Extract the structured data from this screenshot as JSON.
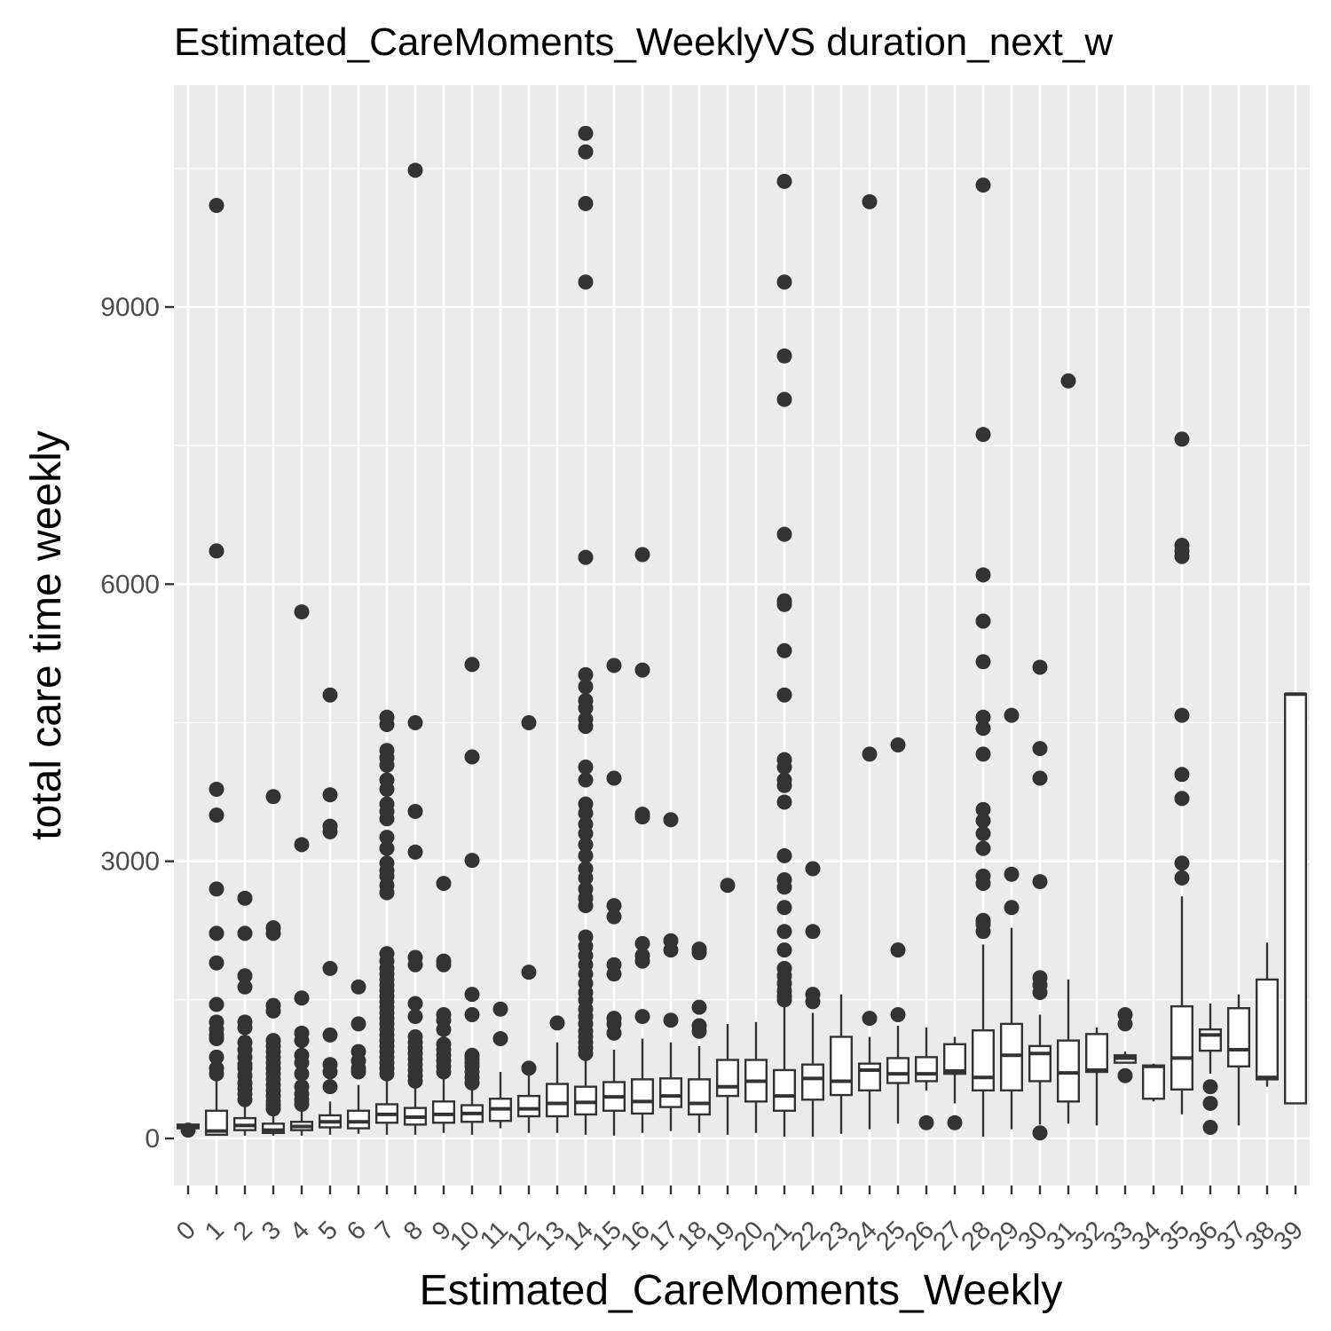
{
  "chart_data": {
    "type": "box",
    "title": "Estimated_CareMoments_WeeklyVS duration_next_w",
    "xlabel": "Estimated_CareMoments_Weekly",
    "ylabel": "total care time weekly",
    "ylim": [
      -550,
      11400
    ],
    "yticks": [
      0,
      3000,
      6000,
      9000
    ],
    "grid": true,
    "legend": "none",
    "colors": {
      "panel": "#ebebeb",
      "grid": "#ffffff",
      "box_stroke": "#333333",
      "box_fill": "#ffffff",
      "outlier": "#333333"
    },
    "categories": [
      "0",
      "1",
      "2",
      "3",
      "4",
      "5",
      "6",
      "7",
      "8",
      "9",
      "10",
      "11",
      "12",
      "13",
      "14",
      "15",
      "16",
      "17",
      "18",
      "19",
      "20",
      "21",
      "22",
      "23",
      "24",
      "25",
      "26",
      "27",
      "28",
      "29",
      "30",
      "31",
      "32",
      "33",
      "34",
      "35",
      "36",
      "37",
      "38",
      "39"
    ],
    "boxes": [
      {
        "x": "0",
        "min": 90,
        "q1": 110,
        "median": 130,
        "q3": 150,
        "max": 160,
        "outliers": [
          90
        ]
      },
      {
        "x": "1",
        "min": 30,
        "q1": 40,
        "median": 80,
        "q3": 300,
        "max": 620,
        "outliers": [
          10100,
          6360,
          3780,
          3500,
          2700,
          2220,
          1900,
          1450,
          1260,
          1180,
          1120,
          1080,
          880,
          760,
          700
        ]
      },
      {
        "x": "2",
        "min": 30,
        "q1": 90,
        "median": 140,
        "q3": 220,
        "max": 380,
        "outliers": [
          2600,
          2220,
          1760,
          1640,
          1260,
          1200,
          1040,
          960,
          880,
          800,
          760,
          680,
          600,
          540,
          480,
          420
        ]
      },
      {
        "x": "3",
        "min": 30,
        "q1": 60,
        "median": 90,
        "q3": 160,
        "max": 300,
        "outliers": [
          3700,
          2280,
          2220,
          1440,
          1380,
          1060,
          1000,
          940,
          880,
          820,
          760,
          700,
          640,
          580,
          520,
          460,
          400,
          360,
          320
        ]
      },
      {
        "x": "4",
        "min": 30,
        "q1": 90,
        "median": 130,
        "q3": 180,
        "max": 300,
        "outliers": [
          5700,
          3180,
          1520,
          1140,
          1060,
          900,
          820,
          700,
          560,
          480,
          420,
          370
        ]
      },
      {
        "x": "5",
        "min": 40,
        "q1": 120,
        "median": 180,
        "q3": 250,
        "max": 400,
        "outliers": [
          4800,
          3720,
          3380,
          3320,
          1840,
          1120,
          800,
          720,
          560
        ]
      },
      {
        "x": "6",
        "min": 50,
        "q1": 110,
        "median": 180,
        "q3": 300,
        "max": 580,
        "outliers": [
          1640,
          1240,
          940,
          840,
          760,
          720
        ]
      },
      {
        "x": "7",
        "min": 40,
        "q1": 170,
        "median": 260,
        "q3": 370,
        "max": 660,
        "outliers": [
          4560,
          4480,
          4200,
          4120,
          4040,
          3880,
          3780,
          3620,
          3540,
          3460,
          3260,
          3140,
          2980,
          2900,
          2840,
          2740,
          2660,
          2000,
          1920,
          1840,
          1780,
          1720,
          1660,
          1600,
          1540,
          1480,
          1420,
          1360,
          1300,
          1240,
          1180,
          1120,
          1060,
          1000,
          940,
          880,
          820,
          760,
          700
        ]
      },
      {
        "x": "8",
        "min": 40,
        "q1": 150,
        "median": 230,
        "q3": 330,
        "max": 580,
        "outliers": [
          10480,
          4500,
          3540,
          3100,
          1960,
          1880,
          1460,
          1320,
          1100,
          1040,
          980,
          920,
          860,
          800,
          740,
          680,
          620
        ]
      },
      {
        "x": "9",
        "min": 60,
        "q1": 170,
        "median": 260,
        "q3": 400,
        "max": 660,
        "outliers": [
          2760,
          1920,
          1880,
          1340,
          1280,
          1180,
          1020,
          960,
          900,
          840,
          780,
          720
        ]
      },
      {
        "x": "10",
        "min": 40,
        "q1": 180,
        "median": 270,
        "q3": 360,
        "max": 560,
        "outliers": [
          5130,
          4130,
          3010,
          1560,
          1340,
          900,
          860,
          820,
          780,
          720,
          660,
          600
        ]
      },
      {
        "x": "11",
        "min": 110,
        "q1": 190,
        "median": 320,
        "q3": 430,
        "max": 720,
        "outliers": [
          1400,
          1080
        ]
      },
      {
        "x": "12",
        "min": 60,
        "q1": 240,
        "median": 320,
        "q3": 460,
        "max": 680,
        "outliers": [
          4500,
          1800,
          760
        ]
      },
      {
        "x": "13",
        "min": 60,
        "q1": 240,
        "median": 380,
        "q3": 590,
        "max": 1040,
        "outliers": [
          1250
        ]
      },
      {
        "x": "14",
        "min": 40,
        "q1": 260,
        "median": 390,
        "q3": 560,
        "max": 900,
        "outliers": [
          10880,
          10680,
          10120,
          9270,
          6290,
          5020,
          4890,
          4740,
          4660,
          4540,
          4460,
          4020,
          3880,
          3620,
          3520,
          3400,
          3300,
          3180,
          3060,
          2920,
          2820,
          2700,
          2600,
          2520,
          2180,
          2080,
          1980,
          1880,
          1780,
          1680,
          1580,
          1500,
          1400,
          1320,
          1240,
          1160,
          1100,
          1040,
          980,
          920
        ]
      },
      {
        "x": "15",
        "min": 30,
        "q1": 300,
        "median": 450,
        "q3": 610,
        "max": 960,
        "outliers": [
          5120,
          3900,
          2520,
          2400,
          1880,
          1780,
          1300,
          1240,
          1140
        ]
      },
      {
        "x": "16",
        "min": 60,
        "q1": 270,
        "median": 400,
        "q3": 640,
        "max": 1080,
        "outliers": [
          6320,
          5070,
          3510,
          3480,
          2110,
          1980,
          1920,
          1320
        ]
      },
      {
        "x": "17",
        "min": 80,
        "q1": 340,
        "median": 460,
        "q3": 650,
        "max": 1040,
        "outliers": [
          3450,
          2140,
          2040,
          1280
        ]
      },
      {
        "x": "18",
        "min": 60,
        "q1": 260,
        "median": 380,
        "q3": 640,
        "max": 1000,
        "outliers": [
          2050,
          2010,
          1420,
          1220,
          1160
        ]
      },
      {
        "x": "19",
        "min": 40,
        "q1": 460,
        "median": 560,
        "q3": 850,
        "max": 1240,
        "outliers": [
          2740
        ]
      },
      {
        "x": "20",
        "min": 60,
        "q1": 400,
        "median": 620,
        "q3": 850,
        "max": 1260,
        "outliers": []
      },
      {
        "x": "21",
        "min": 20,
        "q1": 300,
        "median": 460,
        "q3": 740,
        "max": 1440,
        "outliers": [
          10360,
          9270,
          8470,
          8000,
          6540,
          5820,
          5780,
          5280,
          4800,
          4100,
          4020,
          3880,
          3820,
          3640,
          3060,
          2800,
          2720,
          2500,
          2240,
          2040,
          1840,
          1760,
          1680,
          1600,
          1540,
          1500
        ]
      },
      {
        "x": "22",
        "min": 20,
        "q1": 420,
        "median": 650,
        "q3": 800,
        "max": 1360,
        "outliers": [
          2920,
          2240,
          1560,
          1480
        ]
      },
      {
        "x": "23",
        "min": 50,
        "q1": 470,
        "median": 620,
        "q3": 1100,
        "max": 1560,
        "outliers": []
      },
      {
        "x": "24",
        "min": 100,
        "q1": 520,
        "median": 740,
        "q3": 810,
        "max": 1100,
        "outliers": [
          10140,
          4160,
          1300
        ]
      },
      {
        "x": "25",
        "min": 160,
        "q1": 600,
        "median": 700,
        "q3": 870,
        "max": 1220,
        "outliers": [
          4260,
          2040,
          1340
        ]
      },
      {
        "x": "26",
        "min": 520,
        "q1": 620,
        "median": 700,
        "q3": 880,
        "max": 1200,
        "outliers": [
          170
        ]
      },
      {
        "x": "27",
        "min": 380,
        "q1": 700,
        "median": 730,
        "q3": 1020,
        "max": 1100,
        "outliers": [
          170
        ]
      },
      {
        "x": "28",
        "min": 20,
        "q1": 520,
        "median": 660,
        "q3": 1170,
        "max": 2100,
        "outliers": [
          10320,
          7620,
          6100,
          5600,
          5160,
          4560,
          4440,
          4160,
          3560,
          3440,
          3300,
          3140,
          2840,
          2760,
          2360,
          2320,
          2240
        ]
      },
      {
        "x": "29",
        "min": 100,
        "q1": 520,
        "median": 900,
        "q3": 1240,
        "max": 2280,
        "outliers": [
          4580,
          2860,
          2500
        ]
      },
      {
        "x": "30",
        "min": 150,
        "q1": 620,
        "median": 920,
        "q3": 1000,
        "max": 1340,
        "outliers": [
          5100,
          4220,
          3900,
          2780,
          1740,
          1660,
          1580,
          60
        ]
      },
      {
        "x": "31",
        "min": 160,
        "q1": 400,
        "median": 710,
        "q3": 1060,
        "max": 1720,
        "outliers": [
          8200
        ]
      },
      {
        "x": "32",
        "min": 140,
        "q1": 720,
        "median": 740,
        "q3": 1130,
        "max": 1200,
        "outliers": []
      },
      {
        "x": "33",
        "min": 820,
        "q1": 820,
        "median": 870,
        "q3": 900,
        "max": 940,
        "outliers": [
          1340,
          1240,
          680
        ]
      },
      {
        "x": "34",
        "min": 400,
        "q1": 430,
        "median": 780,
        "q3": 790,
        "max": 810,
        "outliers": []
      },
      {
        "x": "35",
        "min": 260,
        "q1": 530,
        "median": 870,
        "q3": 1430,
        "max": 2620,
        "outliers": [
          7570,
          6420,
          6360,
          6300,
          4580,
          3940,
          3680,
          2980,
          2820
        ]
      },
      {
        "x": "36",
        "min": 700,
        "q1": 950,
        "median": 1120,
        "q3": 1180,
        "max": 1460,
        "outliers": [
          560,
          380,
          120
        ]
      },
      {
        "x": "37",
        "min": 140,
        "q1": 780,
        "median": 960,
        "q3": 1410,
        "max": 1560,
        "outliers": []
      },
      {
        "x": "38",
        "min": 560,
        "q1": 640,
        "median": 660,
        "q3": 1720,
        "max": 2120,
        "outliers": []
      },
      {
        "x": "39",
        "min": 380,
        "q1": 380,
        "median": 4810,
        "q3": 4810,
        "max": 4810,
        "outliers": []
      }
    ]
  }
}
